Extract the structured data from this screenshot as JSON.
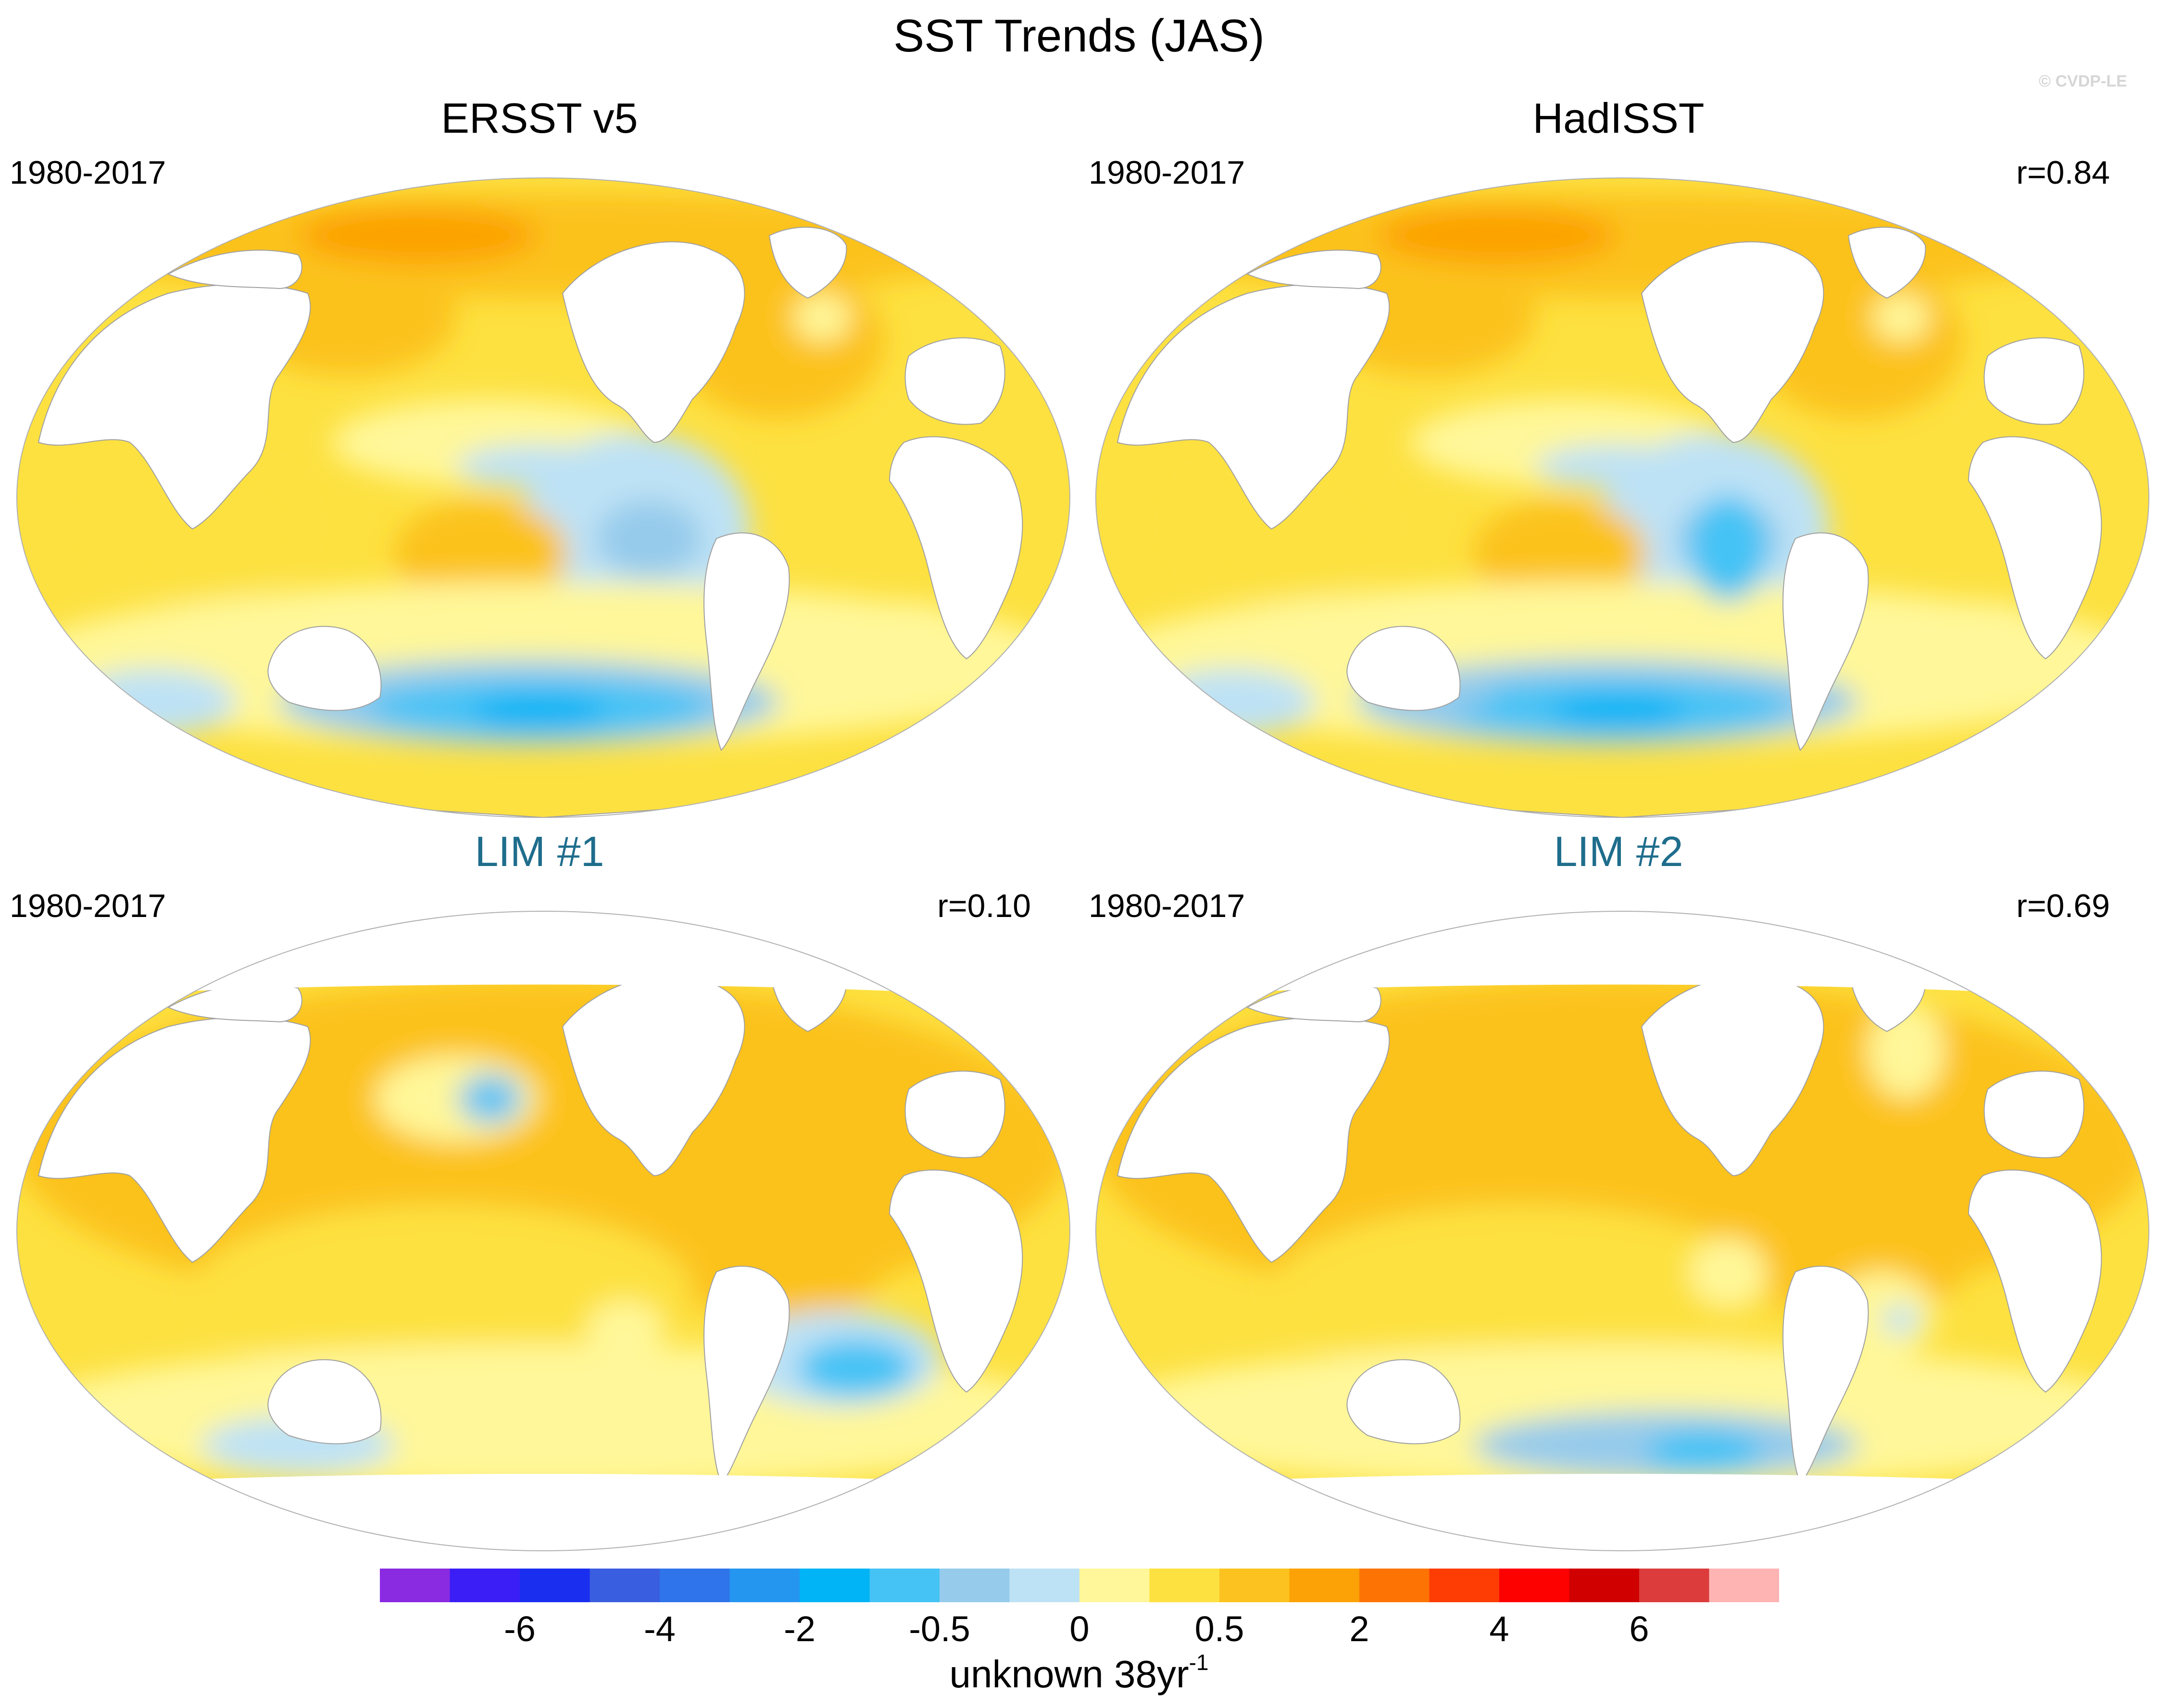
{
  "title": "SST Trends (JAS)",
  "watermark": "© CVDP-LE",
  "colors": {
    "bins": [
      "#8a2be2",
      "#3a1ef5",
      "#1a2ef0",
      "#3a5ee0",
      "#2f74ea",
      "#2596f0",
      "#00b4f5",
      "#45c3f5",
      "#96cbeb",
      "#bee2f5",
      "#fff799",
      "#fde141",
      "#fcc21f",
      "#fca206",
      "#fd7404",
      "#fd3d03",
      "#fd0000",
      "#d10000",
      "#dc3c3c",
      "#ffb4b4"
    ],
    "land": "#ffffff",
    "coast": "#a0a0a0",
    "frame": "#b0b0b0",
    "lim_title": "#1f6d8c"
  },
  "panels": [
    {
      "id": "ersst",
      "title": "ERSST v5",
      "period": "1980-2017",
      "correlation": "",
      "style": "obs"
    },
    {
      "id": "hadisst",
      "title": "HadISST",
      "period": "1980-2017",
      "correlation": "r=0.84",
      "style": "obs"
    },
    {
      "id": "lim1",
      "title": "LIM #1",
      "period": "1980-2017",
      "correlation": "r=0.10",
      "style": "lim"
    },
    {
      "id": "lim2",
      "title": "LIM #2",
      "period": "1980-2017",
      "correlation": "r=0.69",
      "style": "lim"
    }
  ],
  "colorbar": {
    "tick_labels": [
      "-6",
      "-4",
      "-2",
      "-0.5",
      "0",
      "0.5",
      "2",
      "4",
      "6"
    ],
    "units": "unknown 38yr",
    "units_sup": "-1"
  }
}
